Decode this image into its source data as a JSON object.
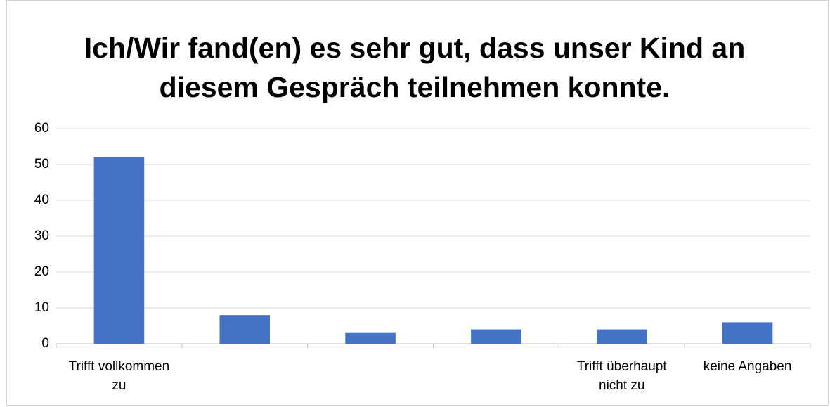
{
  "chart_data": {
    "type": "bar",
    "title": "Ich/Wir fand(en) es sehr gut, dass unser Kind an diesem Gespräch teilnehmen konnte.",
    "categories": [
      "Trifft vollkommen zu",
      null,
      null,
      null,
      "Trifft überhaupt nicht zu",
      "keine Angaben"
    ],
    "values": [
      52,
      8,
      3,
      4,
      4,
      6
    ],
    "color": "#4472c4",
    "ylim": [
      0,
      60
    ],
    "yticks": [
      0,
      10,
      20,
      30,
      40,
      50,
      60
    ],
    "grid": true
  }
}
